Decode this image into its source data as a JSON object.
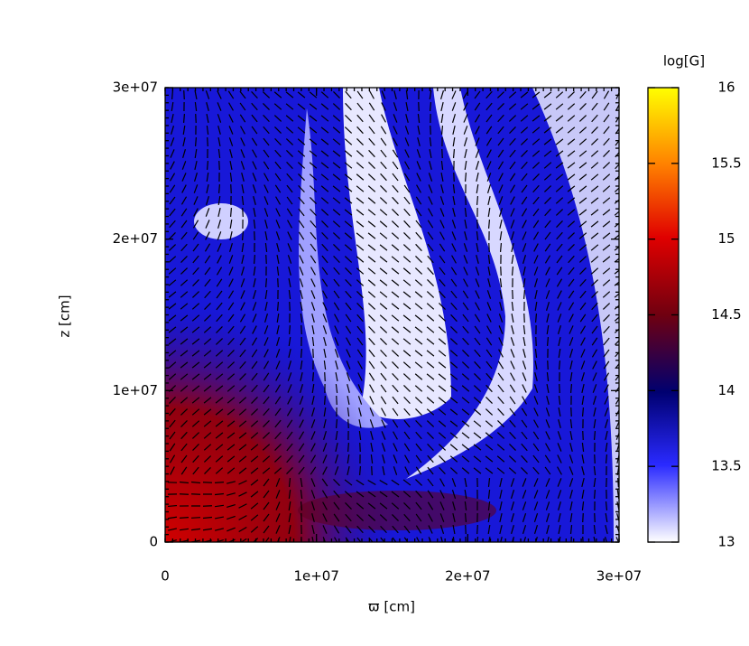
{
  "chart_data": {
    "type": "heatmap",
    "xlabel": "ϖ [cm]",
    "ylabel": "z [cm]",
    "colorbar_label": "log[G]",
    "xlim": [
      0,
      30000000
    ],
    "xticks": [
      0,
      {
        "value": 10000000,
        "label": "1e+07"
      },
      {
        "value": 20000000,
        "label": "2e+07"
      },
      {
        "value": 30000000,
        "label": "3e+07"
      }
    ],
    "ylim": [
      0,
      30000000
    ],
    "yticks": [
      0,
      {
        "value": 10000000,
        "label": "1e+07"
      },
      {
        "value": 20000000,
        "label": "2e+07"
      },
      {
        "value": 30000000,
        "label": "3e+07"
      }
    ],
    "clim": [
      13,
      16
    ],
    "cticks": [
      13,
      13.5,
      14,
      14.5,
      15,
      15.5,
      16
    ]
  }
}
